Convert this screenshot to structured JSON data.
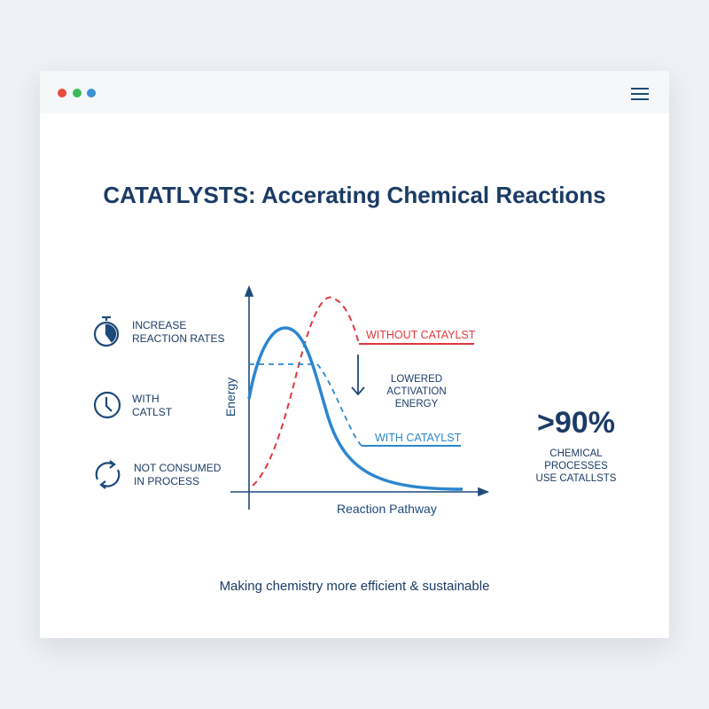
{
  "window": {
    "dots": [
      "#e94b3c",
      "#3cba54",
      "#3b8fd9"
    ],
    "menu_icon": "hamburger-icon"
  },
  "title": "CATATLYSTS: Accerating Chemical Reactions",
  "features": [
    {
      "icon": "stopwatch-icon",
      "lines": [
        "INCREASE",
        "REACTION RATES"
      ]
    },
    {
      "icon": "clock-icon",
      "lines": [
        "WITH",
        "CATLST"
      ]
    },
    {
      "icon": "cycle-arrows-icon",
      "lines": [
        "NOT CONSUMED",
        "IN PROCESS"
      ]
    }
  ],
  "diagram": {
    "y_label": "Energy",
    "x_label": "Reaction Pathway",
    "without_label": "WITHOUT CATAYLST",
    "with_label": "WITH CATAYLST",
    "lowered_label": [
      "LOWERED",
      "ACTIVATION",
      "ENERGY"
    ],
    "colors": {
      "with": "#2b86d0",
      "without": "#e0393e",
      "axis": "#1d4a7a"
    }
  },
  "stat": {
    "value": ">90%",
    "caption": [
      "CHEMICAL",
      "PROCESSES",
      "USE CATALLSTS"
    ]
  },
  "footer": "Making chemistry more efficient & sustainable"
}
